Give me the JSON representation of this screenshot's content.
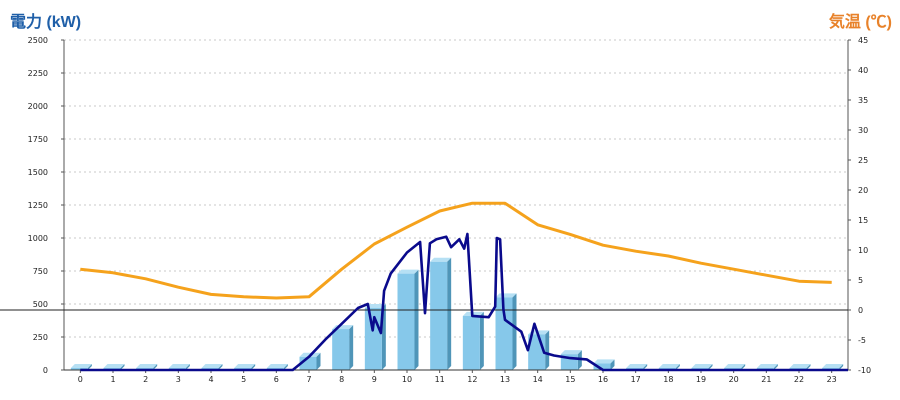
{
  "colors": {
    "left_title": "#1f5fa8",
    "right_title": "#e8822a",
    "bar_face": "#86c8ea",
    "bar_side": "#4f95b8",
    "bar_top": "#b6e0f4",
    "power_line": "#0a0a8c",
    "temp_line": "#f5a21c",
    "grid": "#c8c8c8"
  },
  "titles": {
    "left": "電力 (kW)",
    "right": "気温 (℃)"
  },
  "chart_data": {
    "type": "bar",
    "categories": [
      "0",
      "1",
      "2",
      "3",
      "4",
      "5",
      "6",
      "7",
      "8",
      "9",
      "10",
      "11",
      "12",
      "13",
      "14",
      "15",
      "16",
      "17",
      "18",
      "19",
      "20",
      "21",
      "22",
      "23"
    ],
    "bars": [
      0,
      0,
      0,
      0,
      0,
      0,
      0,
      100,
      310,
      470,
      730,
      820,
      410,
      550,
      270,
      120,
      50,
      0,
      0,
      0,
      0,
      0,
      0,
      0
    ],
    "power_line": {
      "x": [
        0,
        6.5,
        7,
        7.5,
        8,
        8.5,
        8.8,
        8.95,
        9,
        9.2,
        9.3,
        9.5,
        10,
        10.4,
        10.55,
        10.7,
        10.9,
        11.2,
        11.35,
        11.6,
        11.75,
        11.85,
        12,
        12.5,
        12.7,
        12.75,
        12.85,
        12.95,
        13,
        13.5,
        13.7,
        13.9,
        14.2,
        14.5,
        15,
        15.5,
        16,
        23.5
      ],
      "y": [
        0,
        0,
        100,
        230,
        350,
        470,
        500,
        300,
        400,
        280,
        600,
        730,
        890,
        970,
        430,
        960,
        990,
        1010,
        930,
        990,
        920,
        1030,
        410,
        400,
        480,
        1000,
        990,
        460,
        380,
        290,
        150,
        350,
        130,
        110,
        90,
        80,
        0,
        0
      ]
    },
    "temperature": {
      "x": [
        0,
        1,
        2,
        3,
        4,
        5,
        6,
        7,
        8,
        9,
        10,
        11,
        12,
        13,
        14,
        15,
        16,
        17,
        18,
        19,
        20,
        21,
        22,
        23
      ],
      "values": [
        6.8,
        6.2,
        5.2,
        3.8,
        2.6,
        2.2,
        2.0,
        2.2,
        6.8,
        11.0,
        13.8,
        16.5,
        17.8,
        17.8,
        14.2,
        12.6,
        10.8,
        9.8,
        9.0,
        7.8,
        6.8,
        5.8,
        4.8,
        4.6
      ]
    },
    "y_left": {
      "min": 0,
      "max": 2500,
      "ticks": [
        "0",
        "250",
        "500",
        "750",
        "1000",
        "1250",
        "1500",
        "1750",
        "2000",
        "2250",
        "2500"
      ]
    },
    "y_right": {
      "min": -10,
      "max": 45,
      "ticks": [
        "-10",
        "-5",
        "0",
        "5",
        "10",
        "15",
        "20",
        "25",
        "30",
        "35",
        "40",
        "45"
      ]
    },
    "grid": true
  }
}
